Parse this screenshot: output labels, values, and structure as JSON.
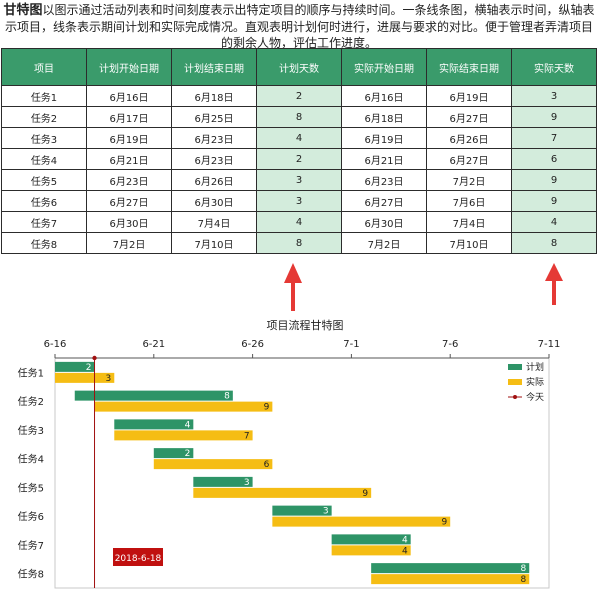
{
  "intro": {
    "term": "甘特图",
    "text": "以图示通过活动列表和时间刻度表示出特定项目的顺序与持续时间。一条线条图，横轴表示时间，纵轴表示项目，线条表示期间计划和实际完成情况。直观表明计划何时进行，进展与要求的对比。便于管理者弄清项目的剩余人物，评估工作进度。"
  },
  "table": {
    "headers": [
      "项目",
      "计划开始日期",
      "计划结束日期",
      "计划天数",
      "实际开始日期",
      "实际结束日期",
      "实际天数"
    ],
    "rows": [
      [
        "任务1",
        "6月16日",
        "6月18日",
        "2",
        "6月16日",
        "6月19日",
        "3"
      ],
      [
        "任务2",
        "6月17日",
        "6月25日",
        "8",
        "6月18日",
        "6月27日",
        "9"
      ],
      [
        "任务3",
        "6月19日",
        "6月23日",
        "4",
        "6月19日",
        "6月26日",
        "7"
      ],
      [
        "任务4",
        "6月21日",
        "6月23日",
        "2",
        "6月21日",
        "6月27日",
        "6"
      ],
      [
        "任务5",
        "6月23日",
        "6月26日",
        "3",
        "6月23日",
        "7月2日",
        "9"
      ],
      [
        "任务6",
        "6月27日",
        "6月30日",
        "3",
        "6月27日",
        "7月6日",
        "9"
      ],
      [
        "任务7",
        "6月30日",
        "7月4日",
        "4",
        "6月30日",
        "7月4日",
        "4"
      ],
      [
        "任务8",
        "7月2日",
        "7月10日",
        "8",
        "7月2日",
        "7月10日",
        "8"
      ]
    ]
  },
  "colors": {
    "header_bg": "#3a9b6b",
    "highlight_bg": "#d3ecdc",
    "plan_bar": "#2e9467",
    "actual_bar": "#f5bd14",
    "today_line": "#a01010",
    "arrow": "#e53935"
  },
  "chart_data": {
    "type": "gantt",
    "title": "项目流程甘特图",
    "x_axis": {
      "position": "top",
      "min": "2018-06-16",
      "max": "2018-07-11",
      "tick_labels": [
        "6-16",
        "6-21",
        "6-26",
        "7-1",
        "7-6",
        "7-11"
      ]
    },
    "categories": [
      "任务1",
      "任务2",
      "任务3",
      "任务4",
      "任务5",
      "任务6",
      "任务7",
      "任务8"
    ],
    "series": [
      {
        "name": "计划",
        "color": "#2e9467",
        "start": [
          "2018-06-16",
          "2018-06-17",
          "2018-06-19",
          "2018-06-21",
          "2018-06-23",
          "2018-06-27",
          "2018-06-30",
          "2018-07-02"
        ],
        "values": [
          2,
          8,
          4,
          2,
          3,
          3,
          4,
          8
        ]
      },
      {
        "name": "实际",
        "color": "#f5bd14",
        "start": [
          "2018-06-16",
          "2018-06-18",
          "2018-06-19",
          "2018-06-21",
          "2018-06-23",
          "2018-06-27",
          "2018-06-30",
          "2018-07-02"
        ],
        "values": [
          3,
          9,
          7,
          6,
          9,
          9,
          4,
          8
        ]
      }
    ],
    "today": {
      "name": "今天",
      "date": "2018-06-18",
      "label": "2018-6-18"
    },
    "legend": "right"
  }
}
